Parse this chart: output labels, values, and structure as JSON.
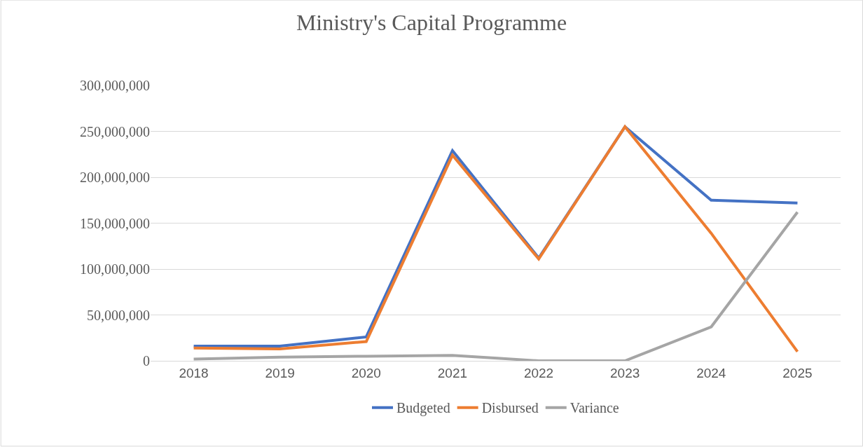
{
  "chart_data": {
    "type": "line",
    "title": "Ministry's Capital Programme",
    "categories": [
      "2018",
      "2019",
      "2020",
      "2021",
      "2022",
      "2023",
      "2024",
      "2025"
    ],
    "series": [
      {
        "name": "Budgeted",
        "color": "#4472c4",
        "values": [
          16000000,
          16000000,
          26000000,
          229000000,
          112000000,
          255000000,
          175000000,
          172000000
        ]
      },
      {
        "name": "Disbursed",
        "color": "#ed7d31",
        "values": [
          14000000,
          13000000,
          21000000,
          224000000,
          111000000,
          255000000,
          139000000,
          10000000
        ]
      },
      {
        "name": "Variance",
        "color": "#a5a5a5",
        "values": [
          2000000,
          4000000,
          5000000,
          6000000,
          0,
          0,
          37000000,
          162000000
        ]
      }
    ],
    "ylim": [
      0,
      300000000
    ],
    "yticks": [
      {
        "value": 0,
        "label": "0"
      },
      {
        "value": 50000000,
        "label": "50,000,000"
      },
      {
        "value": 100000000,
        "label": "100,000,000"
      },
      {
        "value": 150000000,
        "label": "150,000,000"
      },
      {
        "value": 200000000,
        "label": "200,000,000"
      },
      {
        "value": 250000000,
        "label": "250,000,000"
      },
      {
        "value": 300000000,
        "label": "300,000,000"
      }
    ],
    "grid": "y",
    "legend": "bottom",
    "marker": "none",
    "line_style": "solid"
  }
}
